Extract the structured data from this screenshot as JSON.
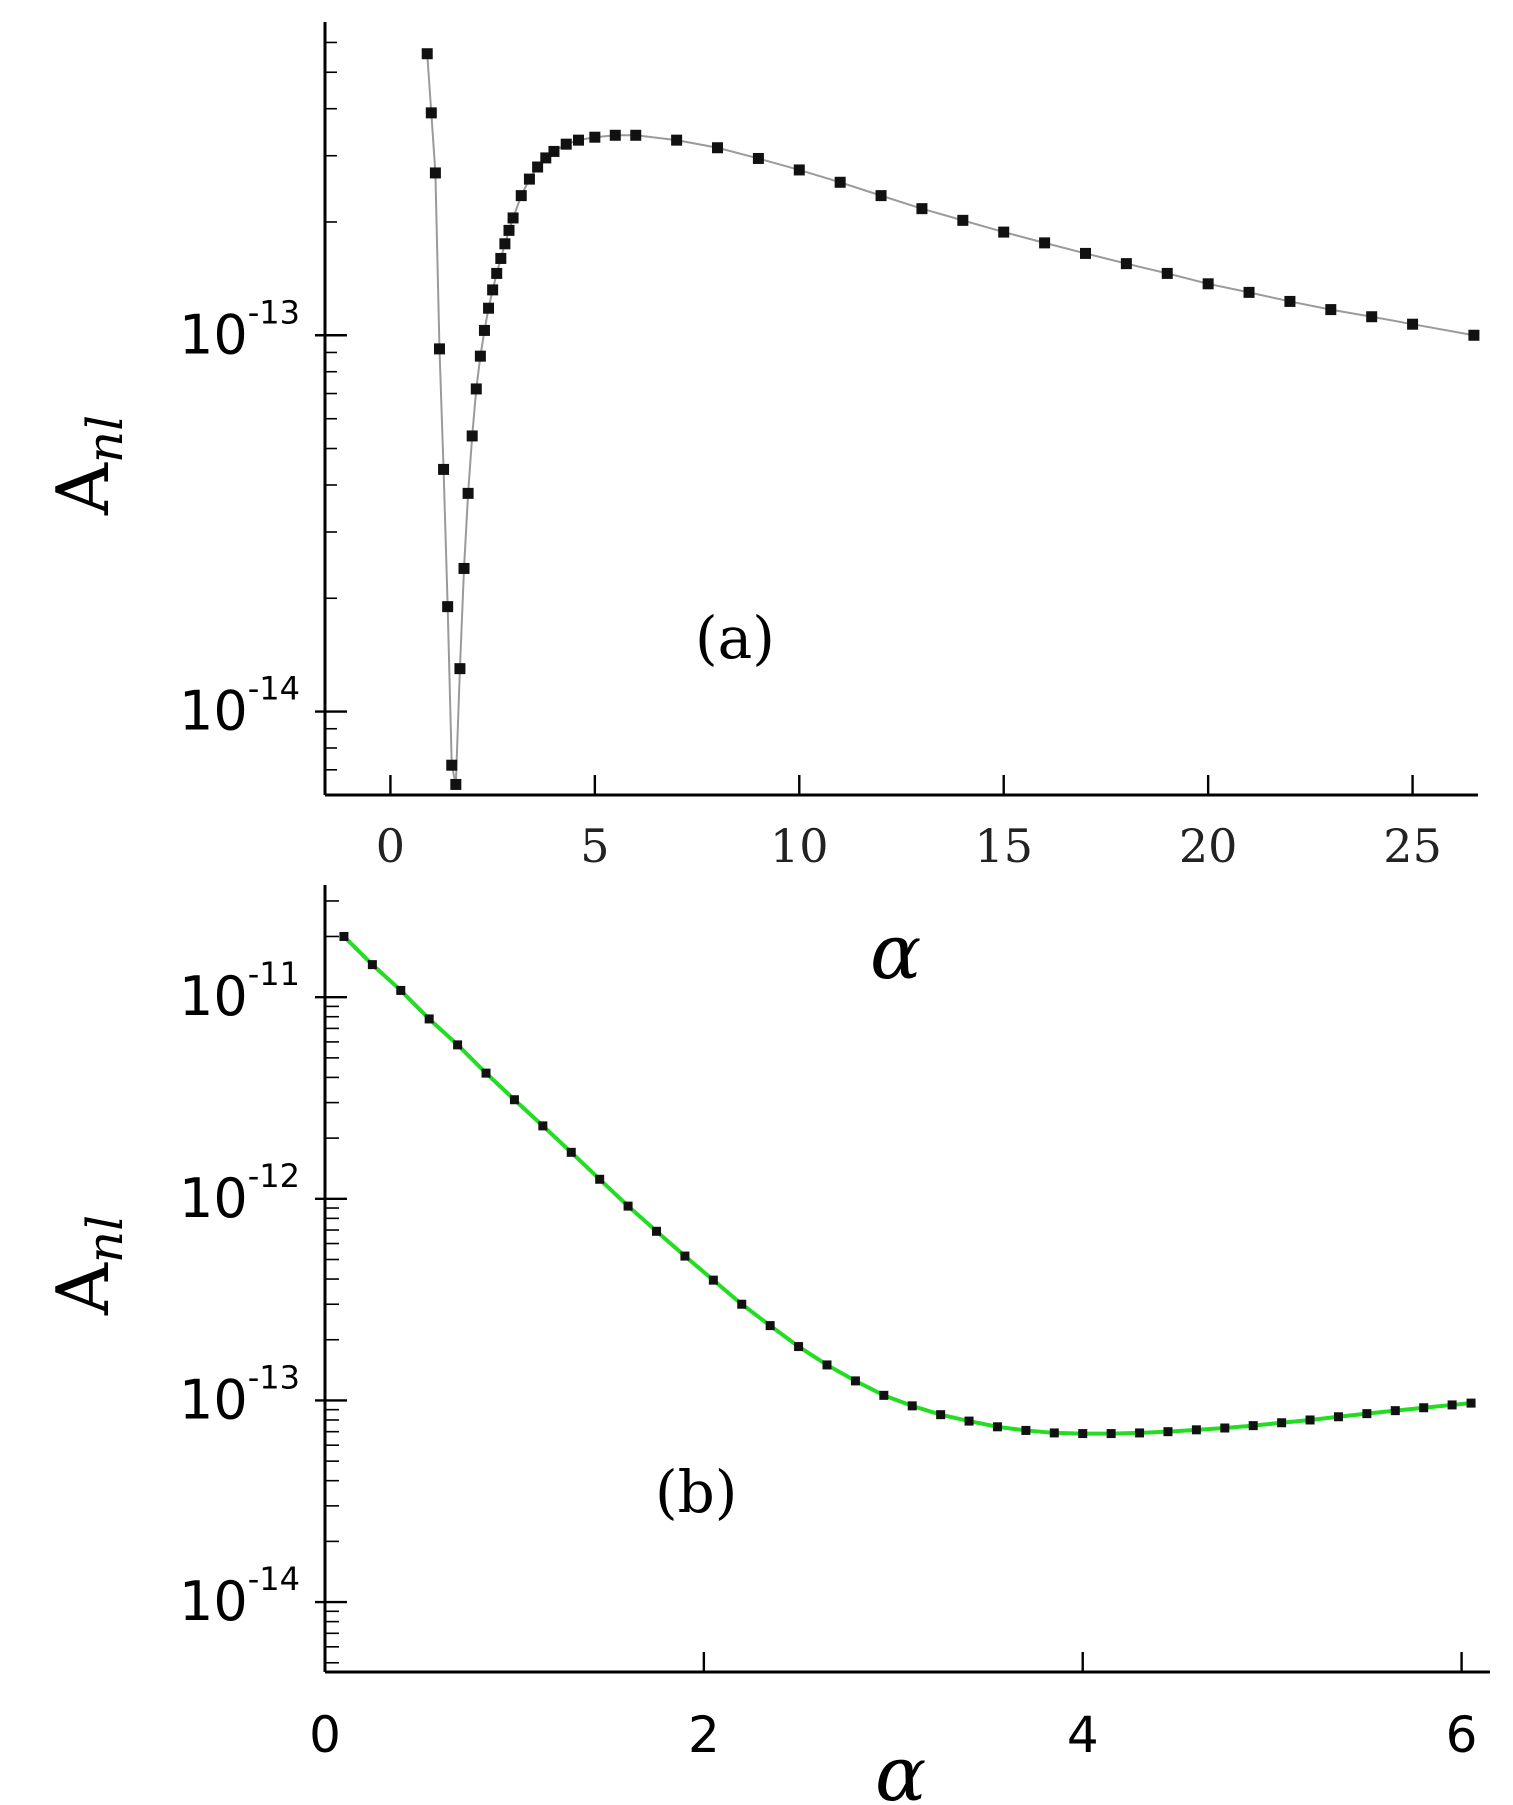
{
  "chart_data": [
    {
      "type": "scatter",
      "panel_label": "(a)",
      "xlabel": "α",
      "ylabel_main": "A",
      "ylabel_sub": "nl",
      "yscale": "log",
      "xlim": [
        -1.6,
        26.6
      ],
      "ylim": [
        6e-15,
        6.8e-13
      ],
      "x_ticks": [
        {
          "value": 0,
          "label": "0"
        },
        {
          "value": 5,
          "label": "5"
        },
        {
          "value": 10,
          "label": "10"
        },
        {
          "value": 15,
          "label": "15"
        },
        {
          "value": 20,
          "label": "20"
        },
        {
          "value": 25,
          "label": "25"
        }
      ],
      "y_ticks": [
        {
          "value": 1e-13,
          "base": "10",
          "exp": "-13"
        },
        {
          "value": 1e-14,
          "base": "10",
          "exp": "-14"
        }
      ],
      "marker_color": "#111111",
      "line_color": "#9a9a9a",
      "series": [
        {
          "x": [
            0.9,
            1.0,
            1.1,
            1.2,
            1.3,
            1.4,
            1.5,
            1.6,
            1.7,
            1.8,
            1.9,
            2.0,
            2.1,
            2.2,
            2.3,
            2.4,
            2.5,
            2.6,
            2.7,
            2.8,
            2.9,
            3.0,
            3.2,
            3.4,
            3.6,
            3.8,
            4.0,
            4.3,
            4.6,
            5.0,
            5.5,
            6.0,
            7.0,
            8.0,
            9.0,
            10.0,
            11.0,
            12.0,
            13.0,
            14.0,
            15.0,
            16.0,
            17.0,
            18.0,
            19.0,
            20.0,
            21.0,
            22.0,
            23.0,
            24.0,
            25.0,
            26.5
          ],
          "y": [
            5.6e-13,
            3.9e-13,
            2.7e-13,
            9.2e-14,
            4.4e-14,
            1.9e-14,
            7.2e-15,
            6.4e-15,
            1.3e-14,
            2.4e-14,
            3.8e-14,
            5.4e-14,
            7.2e-14,
            8.8e-14,
            1.03e-13,
            1.18e-13,
            1.32e-13,
            1.46e-13,
            1.6e-13,
            1.75e-13,
            1.9e-13,
            2.05e-13,
            2.35e-13,
            2.6e-13,
            2.8e-13,
            2.96e-13,
            3.08e-13,
            3.22e-13,
            3.3e-13,
            3.36e-13,
            3.4e-13,
            3.4e-13,
            3.3e-13,
            3.15e-13,
            2.95e-13,
            2.75e-13,
            2.55e-13,
            2.35e-13,
            2.17e-13,
            2.02e-13,
            1.88e-13,
            1.76e-13,
            1.65e-13,
            1.55e-13,
            1.46e-13,
            1.37e-13,
            1.3e-13,
            1.23e-13,
            1.17e-13,
            1.12e-13,
            1.07e-13,
            1e-13
          ]
        }
      ]
    },
    {
      "type": "scatter",
      "panel_label": "(b)",
      "xlabel": "α",
      "ylabel_main": "A",
      "ylabel_sub": "nl",
      "yscale": "log",
      "xlim": [
        0,
        6.15
      ],
      "ylim": [
        4.5e-15,
        3.6e-11
      ],
      "x_ticks": [
        {
          "value": 0,
          "label": "0"
        },
        {
          "value": 2,
          "label": "2"
        },
        {
          "value": 4,
          "label": "4"
        },
        {
          "value": 6,
          "label": "6"
        }
      ],
      "y_ticks": [
        {
          "value": 1e-11,
          "base": "10",
          "exp": "-11"
        },
        {
          "value": 1e-12,
          "base": "10",
          "exp": "-12"
        },
        {
          "value": 1e-13,
          "base": "10",
          "exp": "-13"
        },
        {
          "value": 1e-14,
          "base": "10",
          "exp": "-14"
        }
      ],
      "marker_color": "#111111",
      "line_color": "#22dd22",
      "series": [
        {
          "x": [
            0.1,
            0.25,
            0.4,
            0.55,
            0.7,
            0.85,
            1.0,
            1.15,
            1.3,
            1.45,
            1.6,
            1.75,
            1.9,
            2.05,
            2.2,
            2.35,
            2.5,
            2.65,
            2.8,
            2.95,
            3.1,
            3.25,
            3.4,
            3.55,
            3.7,
            3.85,
            4.0,
            4.15,
            4.3,
            4.45,
            4.6,
            4.75,
            4.9,
            5.05,
            5.2,
            5.35,
            5.5,
            5.65,
            5.8,
            5.95,
            6.05
          ],
          "y": [
            2e-11,
            1.45e-11,
            1.08e-11,
            7.8e-12,
            5.8e-12,
            4.2e-12,
            3.1e-12,
            2.3e-12,
            1.7e-12,
            1.25e-12,
            9.2e-13,
            6.9e-13,
            5.2e-13,
            3.95e-13,
            3e-13,
            2.35e-13,
            1.85e-13,
            1.5e-13,
            1.25e-13,
            1.06e-13,
            9.4e-14,
            8.5e-14,
            7.9e-14,
            7.4e-14,
            7.1e-14,
            6.9e-14,
            6.85e-14,
            6.85e-14,
            6.9e-14,
            7e-14,
            7.15e-14,
            7.3e-14,
            7.5e-14,
            7.75e-14,
            8e-14,
            8.3e-14,
            8.6e-14,
            8.9e-14,
            9.2e-14,
            9.5e-14,
            9.7e-14
          ]
        }
      ]
    }
  ]
}
